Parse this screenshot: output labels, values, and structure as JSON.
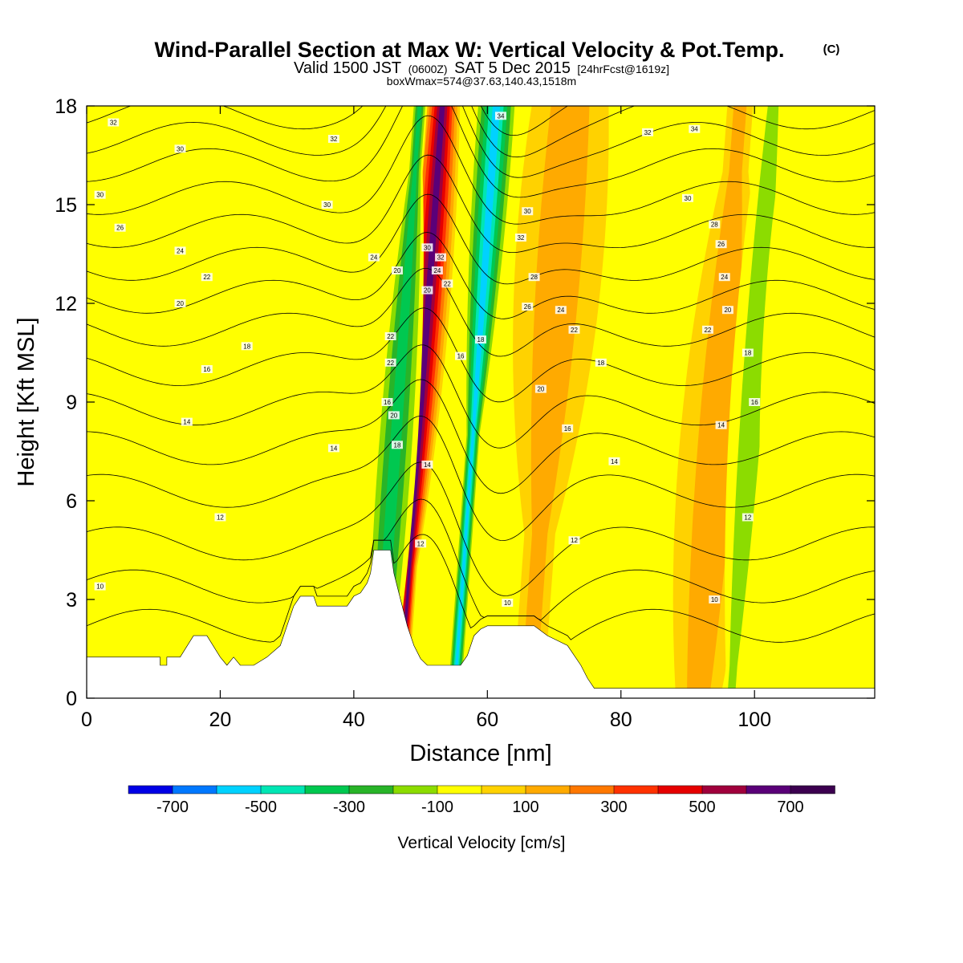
{
  "title": {
    "main": "Wind-Parallel Section at Max W: Vertical Velocity & Pot.Temp.",
    "main_mark": "(C)",
    "valid_prefix": "Valid 1500 JST",
    "valid_utc": "(0600Z)",
    "valid_date": "SAT 5 Dec 2015",
    "valid_fcst": "[24hrFcst@1619z]",
    "box_info": "boxWmax=574@37.63,140.43,1518m"
  },
  "chart_data": {
    "type": "heatmap",
    "xlabel": "Distance [nm]",
    "ylabel": "Height [Kft MSL]",
    "xlim": [
      0,
      118
    ],
    "ylim": [
      0,
      18
    ],
    "x_ticks": [
      0,
      20,
      40,
      60,
      80,
      100
    ],
    "y_ticks": [
      0,
      3,
      6,
      9,
      12,
      15,
      18
    ],
    "colorbar": {
      "label": "Vertical Velocity [cm/s]",
      "levels": [
        -800,
        -700,
        -600,
        -500,
        -400,
        -300,
        -200,
        -100,
        0,
        100,
        200,
        300,
        400,
        500,
        600,
        700,
        800
      ],
      "tick_labels": [
        -700,
        -500,
        -300,
        -100,
        100,
        300,
        500,
        700
      ],
      "colors": [
        "#0000e6",
        "#0078ff",
        "#00d2ff",
        "#00e6b4",
        "#00c850",
        "#28b428",
        "#8cdc00",
        "#ffff00",
        "#ffd200",
        "#ffaa00",
        "#ff7800",
        "#ff3200",
        "#e60000",
        "#a0003c",
        "#5a0078",
        "#3c0050"
      ]
    },
    "w_features": [
      {
        "x": 51.5,
        "z": 13,
        "half_width_nm": 1.5,
        "w": 750
      },
      {
        "x": 46,
        "z": 7,
        "half_width_nm": 1.5,
        "w": -450
      },
      {
        "x": 61,
        "z": 17,
        "half_width_nm": 1.5,
        "w": -600
      },
      {
        "x": 71,
        "z": 14,
        "half_width_nm": 3,
        "w": 200
      },
      {
        "x": 94,
        "z": 7,
        "half_width_nm": 2.5,
        "w": 250
      },
      {
        "x": 100,
        "z": 10,
        "half_width_nm": 1.5,
        "w": -250
      },
      {
        "x": 38,
        "z": 14,
        "half_width_nm": 2.5,
        "w": -150
      },
      {
        "x": 85,
        "z": 12,
        "half_width_nm": 2.5,
        "w": -100
      },
      {
        "x": 106,
        "z": 12,
        "half_width_nm": 2,
        "w": -100
      },
      {
        "x": 17,
        "z": 10,
        "half_width_nm": 2.5,
        "w": -100
      }
    ],
    "terrain": [
      {
        "x": 0,
        "z": 1.25
      },
      {
        "x": 11,
        "z": 1.25
      },
      {
        "x": 11,
        "z": 1.0
      },
      {
        "x": 12,
        "z": 1.0
      },
      {
        "x": 12,
        "z": 1.25
      },
      {
        "x": 14,
        "z": 1.25
      },
      {
        "x": 16,
        "z": 1.9
      },
      {
        "x": 18,
        "z": 1.9
      },
      {
        "x": 20,
        "z": 1.25
      },
      {
        "x": 21,
        "z": 1.0
      },
      {
        "x": 22,
        "z": 1.25
      },
      {
        "x": 23,
        "z": 1.0
      },
      {
        "x": 25,
        "z": 1.0
      },
      {
        "x": 27,
        "z": 1.25
      },
      {
        "x": 29,
        "z": 1.6
      },
      {
        "x": 31,
        "z": 2.8
      },
      {
        "x": 32,
        "z": 3.1
      },
      {
        "x": 34,
        "z": 3.1
      },
      {
        "x": 34.5,
        "z": 2.8
      },
      {
        "x": 39,
        "z": 2.8
      },
      {
        "x": 40,
        "z": 3.1
      },
      {
        "x": 41,
        "z": 3.2
      },
      {
        "x": 42,
        "z": 3.5
      },
      {
        "x": 42.5,
        "z": 3.8
      },
      {
        "x": 43,
        "z": 4.5
      },
      {
        "x": 45.5,
        "z": 4.5
      },
      {
        "x": 46,
        "z": 3.8
      },
      {
        "x": 47,
        "z": 3.0
      },
      {
        "x": 48,
        "z": 2.2
      },
      {
        "x": 49,
        "z": 1.6
      },
      {
        "x": 50,
        "z": 1.2
      },
      {
        "x": 51,
        "z": 1.0
      },
      {
        "x": 53,
        "z": 1.0
      },
      {
        "x": 56,
        "z": 1.0
      },
      {
        "x": 57,
        "z": 1.3
      },
      {
        "x": 58,
        "z": 1.9
      },
      {
        "x": 59,
        "z": 2.1
      },
      {
        "x": 60,
        "z": 2.2
      },
      {
        "x": 67,
        "z": 2.2
      },
      {
        "x": 69,
        "z": 1.9
      },
      {
        "x": 72,
        "z": 1.6
      },
      {
        "x": 74,
        "z": 1.0
      },
      {
        "x": 75,
        "z": 0.6
      },
      {
        "x": 76,
        "z": 0.3
      },
      {
        "x": 118,
        "z": 0.3
      }
    ],
    "theta_contours": {
      "unit": "C",
      "levels": [
        8,
        10,
        12,
        14,
        16,
        18,
        20,
        22,
        24,
        26,
        28,
        30,
        32,
        34,
        36,
        38
      ],
      "base_heights_kft": [
        2.2,
        3.4,
        4.7,
        6.3,
        7.6,
        8.8,
        10.0,
        11.2,
        12.2,
        13.2,
        14.2,
        15.2,
        16.2,
        17.0,
        17.8,
        18.6
      ],
      "labels": [
        {
          "x": 2,
          "z": 3.4,
          "text": "10"
        },
        {
          "x": 20,
          "z": 5.5,
          "text": "12"
        },
        {
          "x": 15,
          "z": 8.4,
          "text": "14"
        },
        {
          "x": 37,
          "z": 7.6,
          "text": "14"
        },
        {
          "x": 18,
          "z": 10.0,
          "text": "16"
        },
        {
          "x": 24,
          "z": 10.7,
          "text": "18"
        },
        {
          "x": 14,
          "z": 12.0,
          "text": "20"
        },
        {
          "x": 18,
          "z": 12.8,
          "text": "22"
        },
        {
          "x": 14,
          "z": 13.6,
          "text": "24"
        },
        {
          "x": 5,
          "z": 14.3,
          "text": "26"
        },
        {
          "x": 2,
          "z": 15.3,
          "text": "30"
        },
        {
          "x": 14,
          "z": 16.7,
          "text": "30"
        },
        {
          "x": 4,
          "z": 17.5,
          "text": "32"
        },
        {
          "x": 37,
          "z": 17.0,
          "text": "32"
        },
        {
          "x": 36,
          "z": 15.0,
          "text": "30"
        },
        {
          "x": 43,
          "z": 13.4,
          "text": "24"
        },
        {
          "x": 46.5,
          "z": 13.0,
          "text": "20"
        },
        {
          "x": 45.5,
          "z": 11.0,
          "text": "22"
        },
        {
          "x": 45.5,
          "z": 10.2,
          "text": "22"
        },
        {
          "x": 45,
          "z": 9.0,
          "text": "16"
        },
        {
          "x": 46,
          "z": 8.6,
          "text": "20"
        },
        {
          "x": 46.5,
          "z": 7.7,
          "text": "18"
        },
        {
          "x": 51,
          "z": 13.7,
          "text": "30"
        },
        {
          "x": 53,
          "z": 13.4,
          "text": "32"
        },
        {
          "x": 52.5,
          "z": 13.0,
          "text": "24"
        },
        {
          "x": 51,
          "z": 12.4,
          "text": "20"
        },
        {
          "x": 54,
          "z": 12.6,
          "text": "22"
        },
        {
          "x": 51,
          "z": 7.1,
          "text": "14"
        },
        {
          "x": 50,
          "z": 4.7,
          "text": "12"
        },
        {
          "x": 56,
          "z": 10.4,
          "text": "16"
        },
        {
          "x": 59,
          "z": 10.9,
          "text": "18"
        },
        {
          "x": 62,
          "z": 17.7,
          "text": "34"
        },
        {
          "x": 66,
          "z": 14.8,
          "text": "30"
        },
        {
          "x": 65,
          "z": 14.0,
          "text": "32"
        },
        {
          "x": 67,
          "z": 12.8,
          "text": "28"
        },
        {
          "x": 66,
          "z": 11.9,
          "text": "26"
        },
        {
          "x": 71,
          "z": 11.8,
          "text": "24"
        },
        {
          "x": 73,
          "z": 11.2,
          "text": "22"
        },
        {
          "x": 77,
          "z": 10.2,
          "text": "18"
        },
        {
          "x": 68,
          "z": 9.4,
          "text": "20"
        },
        {
          "x": 72,
          "z": 8.2,
          "text": "16"
        },
        {
          "x": 79,
          "z": 7.2,
          "text": "14"
        },
        {
          "x": 73,
          "z": 4.8,
          "text": "12"
        },
        {
          "x": 63,
          "z": 2.9,
          "text": "10"
        },
        {
          "x": 84,
          "z": 17.2,
          "text": "32"
        },
        {
          "x": 91,
          "z": 17.3,
          "text": "34"
        },
        {
          "x": 90,
          "z": 15.2,
          "text": "30"
        },
        {
          "x": 94,
          "z": 14.4,
          "text": "28"
        },
        {
          "x": 95,
          "z": 13.8,
          "text": "26"
        },
        {
          "x": 95.5,
          "z": 12.8,
          "text": "24"
        },
        {
          "x": 96,
          "z": 11.8,
          "text": "20"
        },
        {
          "x": 93,
          "z": 11.2,
          "text": "22"
        },
        {
          "x": 99,
          "z": 10.5,
          "text": "18"
        },
        {
          "x": 100,
          "z": 9.0,
          "text": "16"
        },
        {
          "x": 95,
          "z": 8.3,
          "text": "14"
        },
        {
          "x": 99,
          "z": 5.5,
          "text": "12"
        },
        {
          "x": 94,
          "z": 3.0,
          "text": "10"
        }
      ]
    }
  }
}
